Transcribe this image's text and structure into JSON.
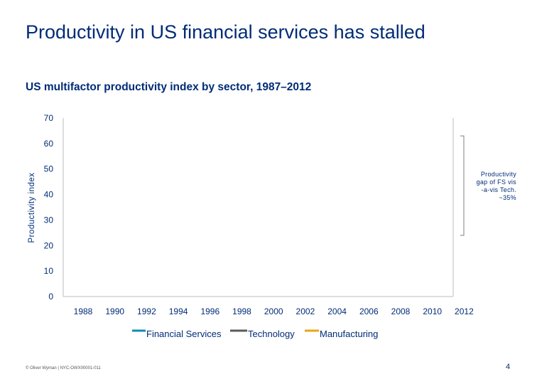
{
  "slide": {
    "title": "Productivity in US financial services has stalled",
    "subtitle": "US multifactor productivity index by sector, 1987–2012",
    "footer": "© Oliver Wyman | NYC-OWX00001-011",
    "page_number": "4"
  },
  "chart_data": {
    "type": "line",
    "title": "",
    "xlabel": "",
    "ylabel": "Productivity index",
    "ylim": [
      0,
      70
    ],
    "y_ticks": [
      "0",
      "10",
      "20",
      "30",
      "40",
      "50",
      "60",
      "70"
    ],
    "x_ticks": [
      "1988",
      "1990",
      "1992",
      "1994",
      "1996",
      "1998",
      "2000",
      "2002",
      "2004",
      "2006",
      "2008",
      "2010",
      "2012"
    ],
    "grid": false,
    "legend_position": "bottom",
    "series": [
      {
        "name": "Financial Services",
        "color": "#0e8bb5",
        "values": []
      },
      {
        "name": "Technology",
        "color": "#5a5a5a",
        "values": []
      },
      {
        "name": "Manufacturing",
        "color": "#eaa41b",
        "values": []
      }
    ],
    "annotation": {
      "text_lines": [
        "Productivity",
        "gap of FS vis",
        "-a-vis Tech.",
        "~35%"
      ],
      "y_from": 63,
      "y_to": 24
    }
  }
}
